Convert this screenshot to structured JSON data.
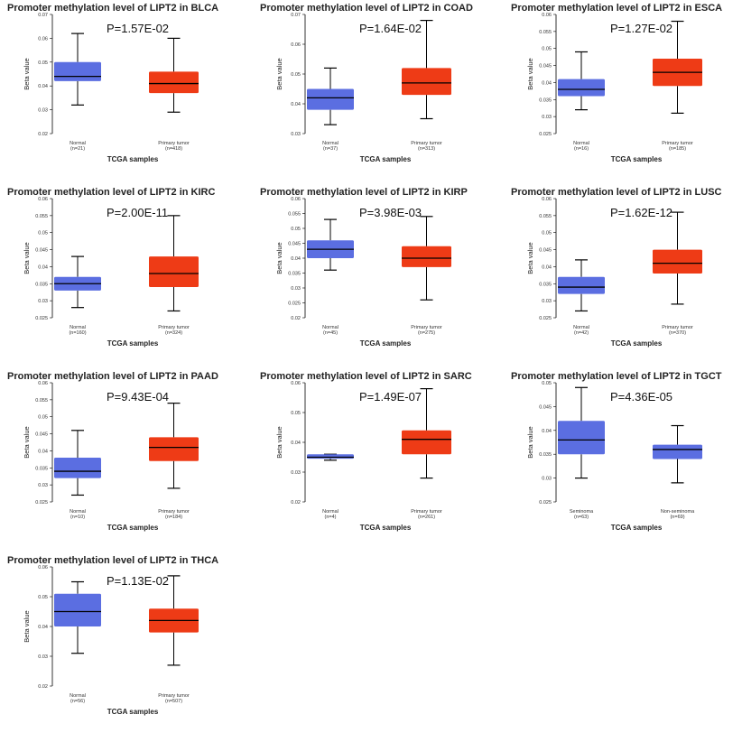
{
  "palette": {
    "normal": "#5b6ee1",
    "tumor": "#ee3b16",
    "median": "#000000",
    "axis": "#000000"
  },
  "chart_data": [
    {
      "type": "box",
      "title": "Promoter methylation level of LIPT2 in BLCA",
      "pvalue": "P=1.57E-02",
      "xlabel": "TCGA samples",
      "ylabel": "Beta value",
      "ylim": [
        0.02,
        0.07
      ],
      "yticks": [
        0.02,
        0.03,
        0.04,
        0.05,
        0.06,
        0.07
      ],
      "ytick_labels": [
        "0.02",
        "0.03",
        "0.04",
        "0.05",
        "0.06",
        "0.07"
      ],
      "groups": [
        {
          "name": "Normal",
          "n": "(n=21)",
          "color": "normal",
          "min": 0.032,
          "q1": 0.042,
          "median": 0.044,
          "q3": 0.05,
          "max": 0.062
        },
        {
          "name": "Primary tumor",
          "n": "(n=418)",
          "color": "tumor",
          "min": 0.029,
          "q1": 0.037,
          "median": 0.041,
          "q3": 0.046,
          "max": 0.06
        }
      ]
    },
    {
      "type": "box",
      "title": "Promoter methylation level of LIPT2 in COAD",
      "pvalue": "P=1.64E-02",
      "xlabel": "TCGA samples",
      "ylabel": "Beta value",
      "ylim": [
        0.03,
        0.07
      ],
      "yticks": [
        0.03,
        0.04,
        0.05,
        0.06,
        0.07
      ],
      "ytick_labels": [
        "0.03",
        "0.04",
        "0.05",
        "0.06",
        "0.07"
      ],
      "groups": [
        {
          "name": "Normal",
          "n": "(n=37)",
          "color": "normal",
          "min": 0.033,
          "q1": 0.038,
          "median": 0.042,
          "q3": 0.045,
          "max": 0.052
        },
        {
          "name": "Primary tumor",
          "n": "(n=313)",
          "color": "tumor",
          "min": 0.035,
          "q1": 0.043,
          "median": 0.047,
          "q3": 0.052,
          "max": 0.068
        }
      ]
    },
    {
      "type": "box",
      "title": "Promoter methylation level of LIPT2 in ESCA",
      "pvalue": "P=1.27E-02",
      "xlabel": "TCGA samples",
      "ylabel": "Beta value",
      "ylim": [
        0.025,
        0.06
      ],
      "yticks": [
        0.025,
        0.03,
        0.035,
        0.04,
        0.045,
        0.05,
        0.055,
        0.06
      ],
      "ytick_labels": [
        "0.025",
        "0.03",
        "0.035",
        "0.04",
        "0.045",
        "0.05",
        "0.055",
        "0.06"
      ],
      "groups": [
        {
          "name": "Normal",
          "n": "(n=16)",
          "color": "normal",
          "min": 0.032,
          "q1": 0.036,
          "median": 0.038,
          "q3": 0.041,
          "max": 0.049
        },
        {
          "name": "Primary tumor",
          "n": "(n=185)",
          "color": "tumor",
          "min": 0.031,
          "q1": 0.039,
          "median": 0.043,
          "q3": 0.047,
          "max": 0.058
        }
      ]
    },
    {
      "type": "box",
      "title": "Promoter methylation level of LIPT2 in KIRC",
      "pvalue": "P=2.00E-11",
      "xlabel": "TCGA samples",
      "ylabel": "Beta value",
      "ylim": [
        0.025,
        0.06
      ],
      "yticks": [
        0.025,
        0.03,
        0.035,
        0.04,
        0.045,
        0.05,
        0.055,
        0.06
      ],
      "ytick_labels": [
        "0.025",
        "0.03",
        "0.035",
        "0.04",
        "0.045",
        "0.05",
        "0.055",
        "0.06"
      ],
      "groups": [
        {
          "name": "Normal",
          "n": "(n=160)",
          "color": "normal",
          "min": 0.028,
          "q1": 0.033,
          "median": 0.035,
          "q3": 0.037,
          "max": 0.043
        },
        {
          "name": "Primary tumor",
          "n": "(n=324)",
          "color": "tumor",
          "min": 0.027,
          "q1": 0.034,
          "median": 0.038,
          "q3": 0.043,
          "max": 0.055
        }
      ]
    },
    {
      "type": "box",
      "title": "Promoter methylation level of LIPT2 in KIRP",
      "pvalue": "P=3.98E-03",
      "xlabel": "TCGA samples",
      "ylabel": "Beta value",
      "ylim": [
        0.02,
        0.06
      ],
      "yticks": [
        0.02,
        0.025,
        0.03,
        0.035,
        0.04,
        0.045,
        0.05,
        0.055,
        0.06
      ],
      "ytick_labels": [
        "0.02",
        "0.025",
        "0.03",
        "0.035",
        "0.04",
        "0.045",
        "0.05",
        "0.055",
        "0.06"
      ],
      "groups": [
        {
          "name": "Normal",
          "n": "(n=45)",
          "color": "normal",
          "min": 0.036,
          "q1": 0.04,
          "median": 0.043,
          "q3": 0.046,
          "max": 0.053
        },
        {
          "name": "Primary tumor",
          "n": "(n=275)",
          "color": "tumor",
          "min": 0.026,
          "q1": 0.037,
          "median": 0.04,
          "q3": 0.044,
          "max": 0.054
        }
      ]
    },
    {
      "type": "box",
      "title": "Promoter methylation level of LIPT2 in LUSC",
      "pvalue": "P=1.62E-12",
      "xlabel": "TCGA samples",
      "ylabel": "Beta value",
      "ylim": [
        0.025,
        0.06
      ],
      "yticks": [
        0.025,
        0.03,
        0.035,
        0.04,
        0.045,
        0.05,
        0.055,
        0.06
      ],
      "ytick_labels": [
        "0.025",
        "0.03",
        "0.035",
        "0.04",
        "0.045",
        "0.05",
        "0.055",
        "0.06"
      ],
      "groups": [
        {
          "name": "Normal",
          "n": "(n=42)",
          "color": "normal",
          "min": 0.027,
          "q1": 0.032,
          "median": 0.034,
          "q3": 0.037,
          "max": 0.042
        },
        {
          "name": "Primary tumor",
          "n": "(n=370)",
          "color": "tumor",
          "min": 0.029,
          "q1": 0.038,
          "median": 0.041,
          "q3": 0.045,
          "max": 0.056
        }
      ]
    },
    {
      "type": "box",
      "title": "Promoter methylation level of LIPT2 in PAAD",
      "pvalue": "P=9.43E-04",
      "xlabel": "TCGA samples",
      "ylabel": "Beta value",
      "ylim": [
        0.025,
        0.06
      ],
      "yticks": [
        0.025,
        0.03,
        0.035,
        0.04,
        0.045,
        0.05,
        0.055,
        0.06
      ],
      "ytick_labels": [
        "0.025",
        "0.03",
        "0.035",
        "0.04",
        "0.045",
        "0.05",
        "0.055",
        "0.06"
      ],
      "groups": [
        {
          "name": "Normal",
          "n": "(n=10)",
          "color": "normal",
          "min": 0.027,
          "q1": 0.032,
          "median": 0.034,
          "q3": 0.038,
          "max": 0.046
        },
        {
          "name": "Primary tumor",
          "n": "(n=184)",
          "color": "tumor",
          "min": 0.029,
          "q1": 0.037,
          "median": 0.041,
          "q3": 0.044,
          "max": 0.054
        }
      ]
    },
    {
      "type": "box",
      "title": "Promoter methylation level of LIPT2 in SARC",
      "pvalue": "P=1.49E-07",
      "xlabel": "TCGA samples",
      "ylabel": "Beta value",
      "ylim": [
        0.02,
        0.06
      ],
      "yticks": [
        0.02,
        0.03,
        0.04,
        0.05,
        0.06
      ],
      "ytick_labels": [
        "0.02",
        "0.03",
        "0.04",
        "0.05",
        "0.06"
      ],
      "groups": [
        {
          "name": "Normal",
          "n": "(n=4)",
          "color": "normal",
          "min": 0.034,
          "q1": 0.0345,
          "median": 0.035,
          "q3": 0.036,
          "max": 0.036
        },
        {
          "name": "Primary tumor",
          "n": "(n=261)",
          "color": "tumor",
          "min": 0.028,
          "q1": 0.036,
          "median": 0.041,
          "q3": 0.044,
          "max": 0.058
        }
      ]
    },
    {
      "type": "box",
      "title": "Promoter methylation level of LIPT2 in TGCT",
      "pvalue": "P=4.36E-05",
      "xlabel": "TCGA samples",
      "ylabel": "Beta value",
      "ylim": [
        0.025,
        0.05
      ],
      "yticks": [
        0.025,
        0.03,
        0.035,
        0.04,
        0.045,
        0.05
      ],
      "ytick_labels": [
        "0.025",
        "0.03",
        "0.035",
        "0.04",
        "0.045",
        "0.05"
      ],
      "groups": [
        {
          "name": "Seminoma",
          "n": "(n=63)",
          "color": "normal",
          "min": 0.03,
          "q1": 0.035,
          "median": 0.038,
          "q3": 0.042,
          "max": 0.049
        },
        {
          "name": "Non-seminoma",
          "n": "(n=69)",
          "color": "normal",
          "min": 0.029,
          "q1": 0.034,
          "median": 0.036,
          "q3": 0.037,
          "max": 0.041
        }
      ]
    },
    {
      "type": "box",
      "title": "Promoter methylation level of LIPT2 in THCA",
      "pvalue": "P=1.13E-02",
      "xlabel": "TCGA samples",
      "ylabel": "Beta value",
      "ylim": [
        0.02,
        0.06
      ],
      "yticks": [
        0.02,
        0.03,
        0.04,
        0.05,
        0.06
      ],
      "ytick_labels": [
        "0.02",
        "0.03",
        "0.04",
        "0.05",
        "0.06"
      ],
      "groups": [
        {
          "name": "Normal",
          "n": "(n=56)",
          "color": "normal",
          "min": 0.031,
          "q1": 0.04,
          "median": 0.045,
          "q3": 0.051,
          "max": 0.055
        },
        {
          "name": "Primary tumor",
          "n": "(n=507)",
          "color": "tumor",
          "min": 0.027,
          "q1": 0.038,
          "median": 0.042,
          "q3": 0.046,
          "max": 0.057
        }
      ]
    }
  ]
}
